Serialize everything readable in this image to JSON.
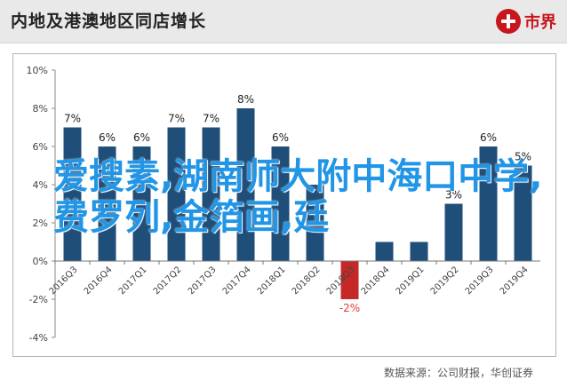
{
  "header": {
    "title": "内地及港澳地区同店增长",
    "logo_text": "市界",
    "logo_icon": "sijie-logo-icon",
    "logo_color": "#c8161d"
  },
  "overlay_text": "爱搜素,湖南师大附中海口中学,费罗列,金箔画,廷",
  "source_text": "数据来源：公司财报，华创证券",
  "colors": {
    "bar": "#1f4e79",
    "header_bg": "#e9e9e9",
    "overlay": "#2196e6",
    "negative_label": "#e53935"
  },
  "chart_data": {
    "type": "bar",
    "title": "内地及港澳地区同店增长",
    "xlabel": "",
    "ylabel": "",
    "categories": [
      "2016Q3",
      "2016Q4",
      "2017Q1",
      "2017Q2",
      "2017Q3",
      "2017Q4",
      "2018Q1",
      "2018Q2",
      "2018Q3",
      "2018Q4",
      "2019Q1",
      "2019Q2",
      "2019Q3",
      "2019Q4"
    ],
    "values": [
      7,
      6,
      6,
      7,
      7,
      8,
      6,
      4,
      -2,
      1,
      1,
      3,
      6,
      5
    ],
    "data_labels": [
      "7%",
      "6%",
      "6%",
      "7%",
      "7%",
      "8%",
      "6%",
      "",
      "-2%",
      "",
      "",
      "3%",
      "6%",
      "5%"
    ],
    "ylim": [
      -4,
      10
    ],
    "yticks": [
      -4,
      -2,
      0,
      2,
      4,
      6,
      8,
      10
    ],
    "ytick_labels": [
      "-4%",
      "-2%",
      "0%",
      "2%",
      "4%",
      "6%",
      "8%",
      "10%"
    ],
    "grid": false,
    "legend": "none"
  }
}
